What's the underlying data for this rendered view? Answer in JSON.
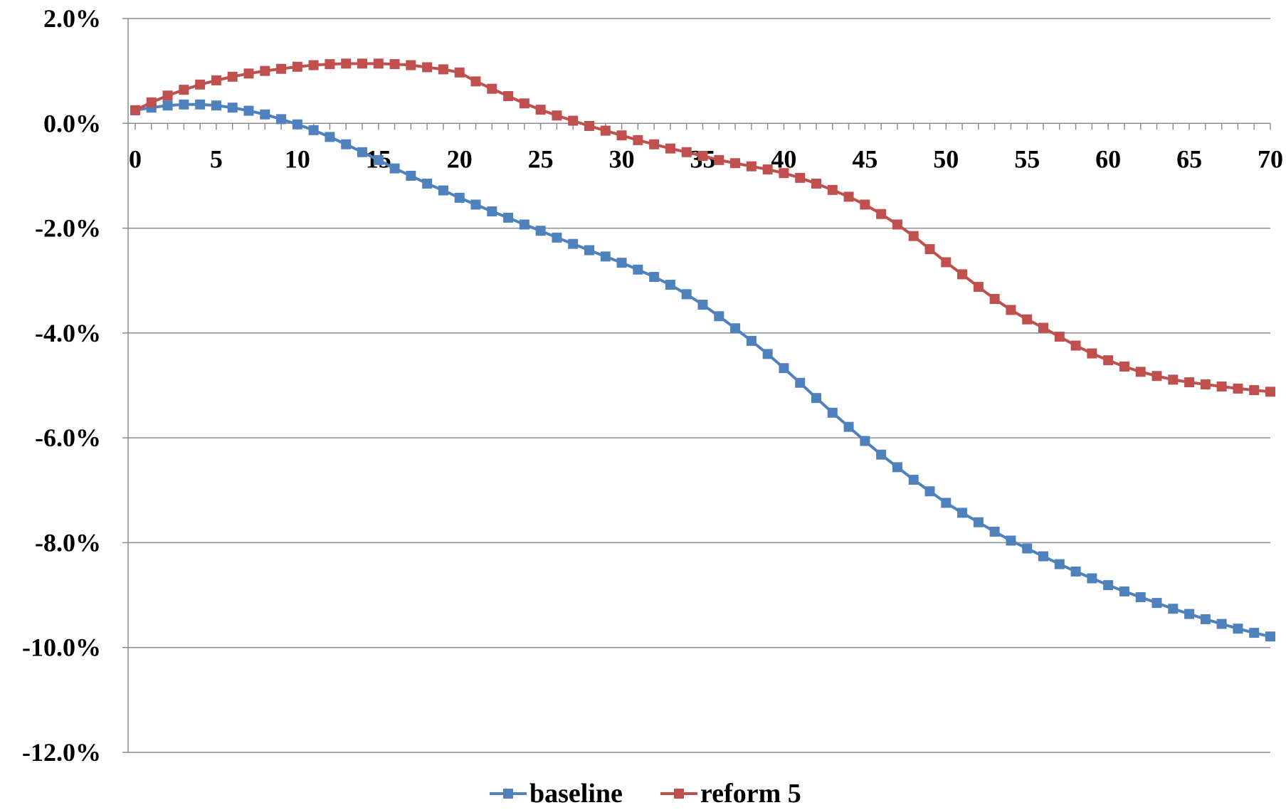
{
  "chart_data": {
    "type": "line",
    "title": "",
    "xlabel": "",
    "ylabel": "",
    "xlim": [
      0,
      70
    ],
    "ylim": [
      -12.0,
      2.0
    ],
    "x_ticks": [
      0,
      5,
      10,
      15,
      20,
      25,
      30,
      35,
      40,
      45,
      50,
      55,
      60,
      65,
      70
    ],
    "x_tick_labels": [
      "0",
      "5",
      "10",
      "15",
      "20",
      "25",
      "30",
      "35",
      "40",
      "45",
      "50",
      "55",
      "60",
      "65",
      "70"
    ],
    "y_ticks": [
      2.0,
      0.0,
      -2.0,
      -4.0,
      -6.0,
      -8.0,
      -10.0,
      -12.0
    ],
    "y_tick_labels": [
      "2.0%",
      "0.0%",
      "-2.0%",
      "-4.0%",
      "-6.0%",
      "-8.0%",
      "-10.0%",
      "-12.0%"
    ],
    "grid": "horizontal",
    "legend_position": "bottom",
    "x": [
      0,
      1,
      2,
      3,
      4,
      5,
      6,
      7,
      8,
      9,
      10,
      11,
      12,
      13,
      14,
      15,
      16,
      17,
      18,
      19,
      20,
      21,
      22,
      23,
      24,
      25,
      26,
      27,
      28,
      29,
      30,
      31,
      32,
      33,
      34,
      35,
      36,
      37,
      38,
      39,
      40,
      41,
      42,
      43,
      44,
      45,
      46,
      47,
      48,
      49,
      50,
      51,
      52,
      53,
      54,
      55,
      56,
      57,
      58,
      59,
      60,
      61,
      62,
      63,
      64,
      65,
      66,
      67,
      68,
      69,
      70
    ],
    "series": [
      {
        "name": "baseline",
        "color": "#4F81BD",
        "values": [
          0.25,
          0.3,
          0.34,
          0.36,
          0.36,
          0.34,
          0.3,
          0.24,
          0.17,
          0.08,
          -0.02,
          -0.13,
          -0.26,
          -0.4,
          -0.55,
          -0.7,
          -0.86,
          -1.0,
          -1.15,
          -1.28,
          -1.42,
          -1.55,
          -1.68,
          -1.8,
          -1.93,
          -2.05,
          -2.18,
          -2.3,
          -2.42,
          -2.54,
          -2.66,
          -2.79,
          -2.93,
          -3.08,
          -3.26,
          -3.46,
          -3.68,
          -3.91,
          -4.15,
          -4.4,
          -4.67,
          -4.95,
          -5.24,
          -5.52,
          -5.79,
          -6.06,
          -6.32,
          -6.56,
          -6.8,
          -7.02,
          -7.24,
          -7.43,
          -7.61,
          -7.79,
          -7.96,
          -8.11,
          -8.26,
          -8.41,
          -8.55,
          -8.68,
          -8.81,
          -8.93,
          -9.04,
          -9.15,
          -9.26,
          -9.36,
          -9.46,
          -9.55,
          -9.64,
          -9.72,
          -9.79
        ]
      },
      {
        "name": "reform 5",
        "color": "#C0504D",
        "values": [
          0.25,
          0.4,
          0.53,
          0.64,
          0.74,
          0.82,
          0.89,
          0.95,
          1.0,
          1.04,
          1.08,
          1.11,
          1.13,
          1.14,
          1.14,
          1.14,
          1.13,
          1.11,
          1.07,
          1.03,
          0.97,
          0.8,
          0.66,
          0.52,
          0.38,
          0.26,
          0.15,
          0.05,
          -0.05,
          -0.14,
          -0.23,
          -0.32,
          -0.4,
          -0.48,
          -0.55,
          -0.62,
          -0.7,
          -0.76,
          -0.82,
          -0.88,
          -0.95,
          -1.04,
          -1.15,
          -1.27,
          -1.4,
          -1.55,
          -1.73,
          -1.93,
          -2.15,
          -2.4,
          -2.65,
          -2.88,
          -3.12,
          -3.35,
          -3.56,
          -3.74,
          -3.9,
          -4.07,
          -4.24,
          -4.39,
          -4.52,
          -4.64,
          -4.74,
          -4.82,
          -4.89,
          -4.94,
          -4.98,
          -5.02,
          -5.06,
          -5.09,
          -5.12
        ]
      }
    ]
  }
}
